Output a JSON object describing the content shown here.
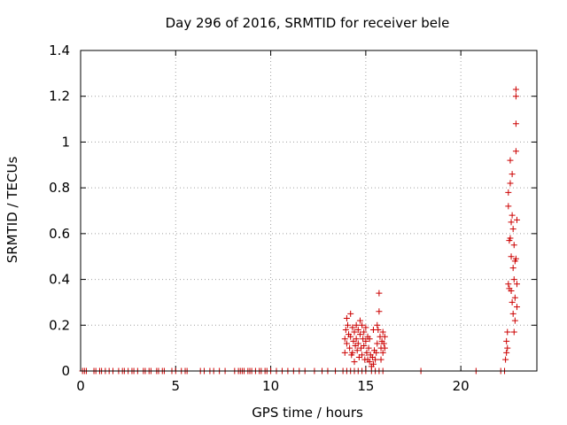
{
  "chart_data": {
    "type": "scatter",
    "title": "Day 296 of 2016, SRMTID for receiver bele",
    "xlabel": "GPS time / hours",
    "ylabel": "SRMTID / TECUs",
    "xlim": [
      0,
      24
    ],
    "ylim": [
      0,
      1.4
    ],
    "xticks": [
      0,
      5,
      10,
      15,
      20
    ],
    "yticks": [
      0,
      0.2,
      0.4,
      0.6,
      0.8,
      1,
      1.2,
      1.4
    ],
    "xtick_labels": [
      "0",
      "5",
      "10",
      "15",
      "20"
    ],
    "ytick_labels": [
      "0",
      "0.2",
      "0.4",
      "0.6",
      "0.8",
      "1",
      "1.2",
      "1.4"
    ],
    "grid": true,
    "marker": "plus",
    "marker_color": "#cc0000",
    "series": [
      {
        "points": [
          [
            0.1,
            0
          ],
          [
            0.2,
            0
          ],
          [
            0.3,
            0
          ],
          [
            0.7,
            0
          ],
          [
            0.8,
            0
          ],
          [
            1.0,
            0
          ],
          [
            1.1,
            0
          ],
          [
            1.3,
            0
          ],
          [
            1.5,
            0
          ],
          [
            1.7,
            0
          ],
          [
            2.0,
            0
          ],
          [
            2.2,
            0
          ],
          [
            2.3,
            0
          ],
          [
            2.5,
            0
          ],
          [
            2.7,
            0
          ],
          [
            2.8,
            0
          ],
          [
            3.0,
            0
          ],
          [
            3.3,
            0
          ],
          [
            3.4,
            0
          ],
          [
            3.6,
            0
          ],
          [
            3.7,
            0
          ],
          [
            4.0,
            0
          ],
          [
            4.1,
            0
          ],
          [
            4.3,
            0
          ],
          [
            4.4,
            0
          ],
          [
            4.8,
            0
          ],
          [
            5.0,
            0
          ],
          [
            5.3,
            0
          ],
          [
            5.5,
            0
          ],
          [
            5.6,
            0
          ],
          [
            6.3,
            0
          ],
          [
            6.5,
            0
          ],
          [
            6.8,
            0
          ],
          [
            7.0,
            0
          ],
          [
            7.3,
            0
          ],
          [
            7.6,
            0
          ],
          [
            8.1,
            0
          ],
          [
            8.3,
            0
          ],
          [
            8.4,
            0
          ],
          [
            8.5,
            0
          ],
          [
            8.6,
            0
          ],
          [
            8.8,
            0
          ],
          [
            8.9,
            0
          ],
          [
            9.0,
            0
          ],
          [
            9.2,
            0
          ],
          [
            9.4,
            0
          ],
          [
            9.5,
            0
          ],
          [
            9.7,
            0
          ],
          [
            9.8,
            0
          ],
          [
            10.0,
            0
          ],
          [
            10.3,
            0
          ],
          [
            10.6,
            0
          ],
          [
            10.9,
            0
          ],
          [
            11.2,
            0
          ],
          [
            11.5,
            0
          ],
          [
            11.8,
            0
          ],
          [
            12.3,
            0
          ],
          [
            12.7,
            0
          ],
          [
            13.0,
            0
          ],
          [
            13.4,
            0
          ],
          [
            13.8,
            0
          ],
          [
            14.0,
            0
          ],
          [
            14.2,
            0
          ],
          [
            14.4,
            0
          ],
          [
            14.6,
            0
          ],
          [
            14.8,
            0
          ],
          [
            15.0,
            0
          ],
          [
            15.3,
            0
          ],
          [
            15.5,
            0
          ],
          [
            15.7,
            0
          ],
          [
            15.9,
            0
          ],
          [
            17.9,
            0
          ],
          [
            20.8,
            0
          ],
          [
            22.1,
            0
          ],
          [
            22.3,
            0
          ],
          [
            13.9,
            0.08
          ],
          [
            13.9,
            0.14
          ],
          [
            13.95,
            0.18
          ],
          [
            14.0,
            0.23
          ],
          [
            14.0,
            0.12
          ],
          [
            14.05,
            0.2
          ],
          [
            14.1,
            0.16
          ],
          [
            14.15,
            0.1
          ],
          [
            14.2,
            0.25
          ],
          [
            14.2,
            0.15
          ],
          [
            14.25,
            0.07
          ],
          [
            14.3,
            0.19
          ],
          [
            14.35,
            0.13
          ],
          [
            14.4,
            0.17
          ],
          [
            14.4,
            0.04
          ],
          [
            14.45,
            0.11
          ],
          [
            14.5,
            0.2
          ],
          [
            14.5,
            0.14
          ],
          [
            14.55,
            0.09
          ],
          [
            14.6,
            0.18
          ],
          [
            14.6,
            0.12
          ],
          [
            14.65,
            0.06
          ],
          [
            14.7,
            0.22
          ],
          [
            14.7,
            0.16
          ],
          [
            14.75,
            0.1
          ],
          [
            14.8,
            0.2
          ],
          [
            14.8,
            0.07
          ],
          [
            14.85,
            0.14
          ],
          [
            14.9,
            0.17
          ],
          [
            14.9,
            0.11
          ],
          [
            14.95,
            0.05
          ],
          [
            15.0,
            0.19
          ],
          [
            15.0,
            0.13
          ],
          [
            15.05,
            0.08
          ],
          [
            15.1,
            0.15
          ],
          [
            15.1,
            0.05
          ],
          [
            15.15,
            0.1
          ],
          [
            15.2,
            0.04
          ],
          [
            15.25,
            0.07
          ],
          [
            15.3,
            0.02
          ],
          [
            15.35,
            0.06
          ],
          [
            15.4,
            0.03
          ],
          [
            15.45,
            0.09
          ],
          [
            15.5,
            0.05
          ],
          [
            15.55,
            0.08
          ],
          [
            15.6,
            0.12
          ],
          [
            15.6,
            0.2
          ],
          [
            15.65,
            0.18
          ],
          [
            15.7,
            0.26
          ],
          [
            15.7,
            0.34
          ],
          [
            15.75,
            0.15
          ],
          [
            15.8,
            0.1
          ],
          [
            15.8,
            0.05
          ],
          [
            15.85,
            0.13
          ],
          [
            15.9,
            0.17
          ],
          [
            15.9,
            0.08
          ],
          [
            15.95,
            0.12
          ],
          [
            16.0,
            0.15
          ],
          [
            16.0,
            0.1
          ],
          [
            15.2,
            0.14
          ],
          [
            14.3,
            0.08
          ],
          [
            15.4,
            0.18
          ],
          [
            22.35,
            0.05
          ],
          [
            22.4,
            0.08
          ],
          [
            22.4,
            0.13
          ],
          [
            22.45,
            0.1
          ],
          [
            22.45,
            0.17
          ],
          [
            22.5,
            0.38
          ],
          [
            22.5,
            0.72
          ],
          [
            22.5,
            0.78
          ],
          [
            22.55,
            0.36
          ],
          [
            22.55,
            0.57
          ],
          [
            22.6,
            0.58
          ],
          [
            22.6,
            0.82
          ],
          [
            22.6,
            0.92
          ],
          [
            22.65,
            0.35
          ],
          [
            22.65,
            0.5
          ],
          [
            22.65,
            0.65
          ],
          [
            22.7,
            0.68
          ],
          [
            22.7,
            0.86
          ],
          [
            22.7,
            0.3
          ],
          [
            22.75,
            0.45
          ],
          [
            22.75,
            0.62
          ],
          [
            22.75,
            0.25
          ],
          [
            22.8,
            0.55
          ],
          [
            22.8,
            0.4
          ],
          [
            22.8,
            0.17
          ],
          [
            22.85,
            0.32
          ],
          [
            22.85,
            0.48
          ],
          [
            22.85,
            0.22
          ],
          [
            22.9,
            0.96
          ],
          [
            22.9,
            1.08
          ],
          [
            22.9,
            1.2
          ],
          [
            22.9,
            1.23
          ],
          [
            22.9,
            0.49
          ],
          [
            22.95,
            0.28
          ],
          [
            22.95,
            0.38
          ],
          [
            22.95,
            0.66
          ]
        ]
      }
    ]
  }
}
